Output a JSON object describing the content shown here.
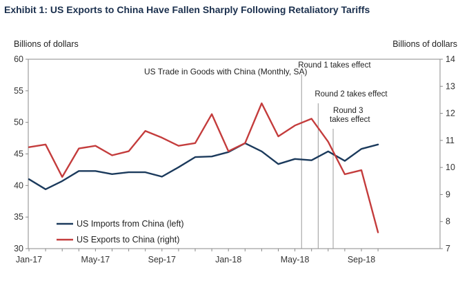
{
  "header": {
    "title": "Exhibit 1: US Exports to China Have Fallen Sharply Following Retaliatory Tariffs",
    "left_unit": "Billions of dollars",
    "right_unit": "Billions of dollars"
  },
  "colors": {
    "imports": "#1b3a5c",
    "exports": "#c43c3c",
    "title": "#1a2f4d",
    "axis": "#888888",
    "event_line": "#999999"
  },
  "chart_data": {
    "type": "line",
    "title": "US Trade in Goods with China (Monthly, SA)",
    "x": [
      "Jan-17",
      "Feb-17",
      "Mar-17",
      "Apr-17",
      "May-17",
      "Jun-17",
      "Jul-17",
      "Aug-17",
      "Sep-17",
      "Oct-17",
      "Nov-17",
      "Dec-17",
      "Jan-18",
      "Feb-18",
      "Mar-18",
      "Apr-18",
      "May-18",
      "Jun-18",
      "Jul-18",
      "Aug-18",
      "Sep-18",
      "Oct-18"
    ],
    "x_tick_labels": [
      "Jan-17",
      "May-17",
      "Sep-17",
      "Jan-18",
      "May-18",
      "Sep-18"
    ],
    "y_left": {
      "label": "Billions of dollars",
      "range": [
        30,
        60
      ],
      "ticks": [
        30,
        35,
        40,
        45,
        50,
        55,
        60
      ]
    },
    "y_right": {
      "label": "Billions of dollars",
      "range": [
        7,
        14
      ],
      "ticks": [
        7,
        8,
        9,
        10,
        11,
        12,
        13,
        14
      ]
    },
    "series": [
      {
        "name": "US Imports from China (left)",
        "axis": "left",
        "values": [
          41.0,
          39.4,
          40.7,
          42.3,
          42.3,
          41.8,
          42.1,
          42.1,
          41.4,
          42.9,
          44.5,
          44.6,
          45.3,
          46.7,
          45.4,
          43.4,
          44.2,
          44.0,
          45.4,
          43.9,
          45.8,
          46.5
        ]
      },
      {
        "name": "US Exports to China (right)",
        "axis": "right",
        "values": [
          10.75,
          10.85,
          9.65,
          10.7,
          10.8,
          10.45,
          10.6,
          11.35,
          11.1,
          10.8,
          10.9,
          11.97,
          10.6,
          10.9,
          12.37,
          11.15,
          11.55,
          11.8,
          10.95,
          9.75,
          9.9,
          7.6
        ]
      }
    ],
    "events": [
      {
        "label_lines": [
          "Round 1 takes effect"
        ],
        "x_index": 16.4
      },
      {
        "label_lines": [
          "Round 2 takes effect"
        ],
        "x_index": 17.4
      },
      {
        "label_lines": [
          "Round 3",
          "takes effect"
        ],
        "x_index": 18.3
      }
    ],
    "legend_position": "bottom-left",
    "grid": false
  }
}
